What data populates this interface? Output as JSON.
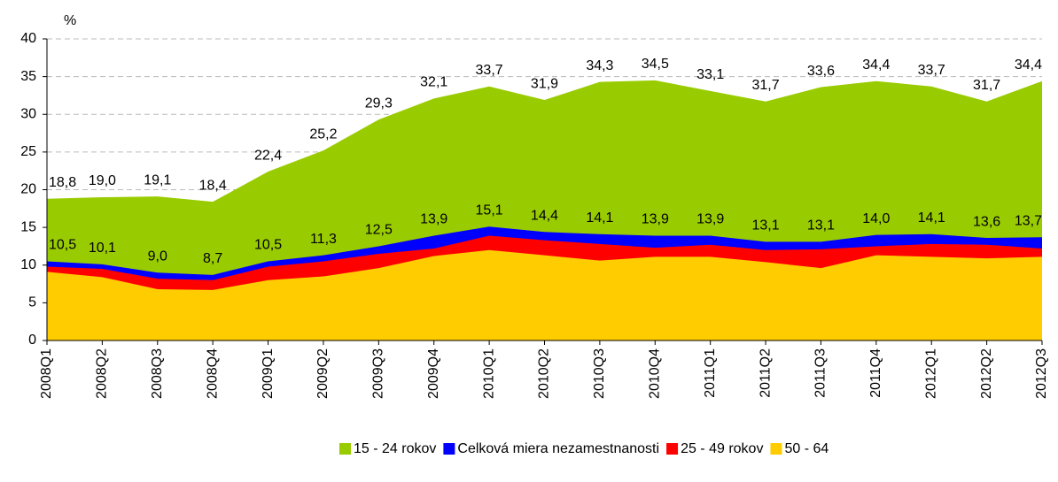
{
  "chart_data": {
    "type": "area",
    "y_label": "%",
    "categories": [
      "2008Q1",
      "2008Q2",
      "2008Q3",
      "2008Q4",
      "2009Q1",
      "2009Q2",
      "2009Q3",
      "2009Q4",
      "2010Q1",
      "2010Q2",
      "2010Q3",
      "2010Q4",
      "2011Q1",
      "2011Q2",
      "2011Q3",
      "2011Q4",
      "2012Q1",
      "2012Q2",
      "2012Q3"
    ],
    "series": [
      {
        "name": "15 - 24 rokov",
        "color": "#99cc00",
        "values": [
          18.8,
          19.0,
          19.1,
          18.4,
          22.4,
          25.2,
          29.3,
          32.1,
          33.7,
          31.9,
          34.3,
          34.5,
          33.1,
          31.7,
          33.6,
          34.4,
          33.7,
          31.7,
          34.4
        ],
        "value_labels": [
          "18,8",
          "19,0",
          "19,1",
          "18,4",
          "22,4",
          "25,2",
          "29,3",
          "32,1",
          "33,7",
          "31,9",
          "34,3",
          "34,5",
          "33,1",
          "31,7",
          "33,6",
          "34,4",
          "33,7",
          "31,7",
          "34,4"
        ]
      },
      {
        "name": "Celková miera nezamestnanosti",
        "color": "#0000ff",
        "values": [
          10.5,
          10.1,
          9.0,
          8.7,
          10.5,
          11.3,
          12.5,
          13.9,
          15.1,
          14.4,
          14.1,
          13.9,
          13.9,
          13.1,
          13.1,
          14.0,
          14.1,
          13.6,
          13.7
        ],
        "value_labels": [
          "10,5",
          "10,1",
          "9,0",
          "8,7",
          "10,5",
          "11,3",
          "12,5",
          "13,9",
          "15,1",
          "14,4",
          "14,1",
          "13,9",
          "13,9",
          "13,1",
          "13,1",
          "14,0",
          "14,1",
          "13,6",
          "13,7"
        ]
      },
      {
        "name": "25 - 49 rokov",
        "color": "#ff0000",
        "values": [
          9.8,
          9.5,
          8.2,
          8.0,
          9.8,
          10.5,
          11.5,
          12.2,
          13.9,
          13.3,
          12.8,
          12.3,
          12.7,
          12.0,
          12.1,
          12.5,
          12.8,
          12.7,
          12.2
        ]
      },
      {
        "name": "50 - 64",
        "color": "#ffcc00",
        "values": [
          9.1,
          8.4,
          6.8,
          6.7,
          8.0,
          8.5,
          9.6,
          11.2,
          12.0,
          11.3,
          10.6,
          11.1,
          11.1,
          10.4,
          9.6,
          11.3,
          11.1,
          10.9,
          11.1
        ]
      }
    ],
    "ylim": [
      0,
      40
    ],
    "yticks": [
      0,
      5,
      10,
      15,
      20,
      25,
      30,
      35,
      40
    ],
    "grid": true,
    "legend": "bottom"
  }
}
